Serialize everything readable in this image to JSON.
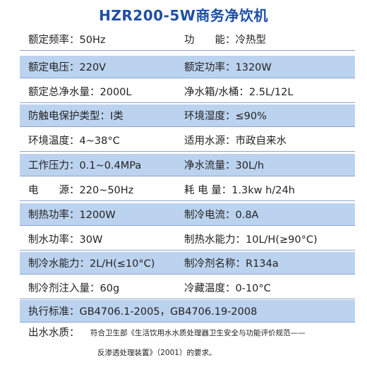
{
  "title": "HZR200-5W商务净饮机",
  "rows": [
    {
      "c1": "额定频率：50Hz",
      "c2": "功　　能：冷热型",
      "shaded": false
    },
    {
      "c1": "额定电压：220V",
      "c2": "额定功率：1320W",
      "shaded": true
    },
    {
      "c1": "额定总净水量：2000L",
      "c2": "净水箱/水桶：2.5L/12L",
      "shaded": false
    },
    {
      "c1": "防触电保护类型：I类",
      "c2": "环境湿度：≤90%",
      "shaded": true
    },
    {
      "c1": "环境温度：4~38°C",
      "c2": "适用水源：市政自来水",
      "shaded": false
    },
    {
      "c1": "工作压力：0.1~0.4MPa",
      "c2": "净水流量：30L/h",
      "shaded": true
    },
    {
      "c1": "电　　源：220~50Hz",
      "c2": "耗 电 量：1.3kw h/24h",
      "shaded": false
    },
    {
      "c1": "制热功率：1200W",
      "c2": "制冷电流：0.8A",
      "shaded": true
    },
    {
      "c1": "制水功率：30W",
      "c2": "制热水能力：10L/H(≥90°C)",
      "shaded": false
    },
    {
      "c1": "制冷水能力：2L/H(≤10°C)",
      "c2": "制冷剂名称：R134a",
      "shaded": true
    },
    {
      "c1": "制冷剂注入量：60g",
      "c2": "冷藏温度：0-10°C",
      "shaded": false
    }
  ],
  "standard": "执行标准：GB4706.1-2005，GB4706.19-2008",
  "note": {
    "label": "出水水质：",
    "line1": "符合卫生部《生活饮用水水质处理器卫生安全与功能评价规范——",
    "line2": "反渗透处理装置》（2001）的要求。"
  }
}
